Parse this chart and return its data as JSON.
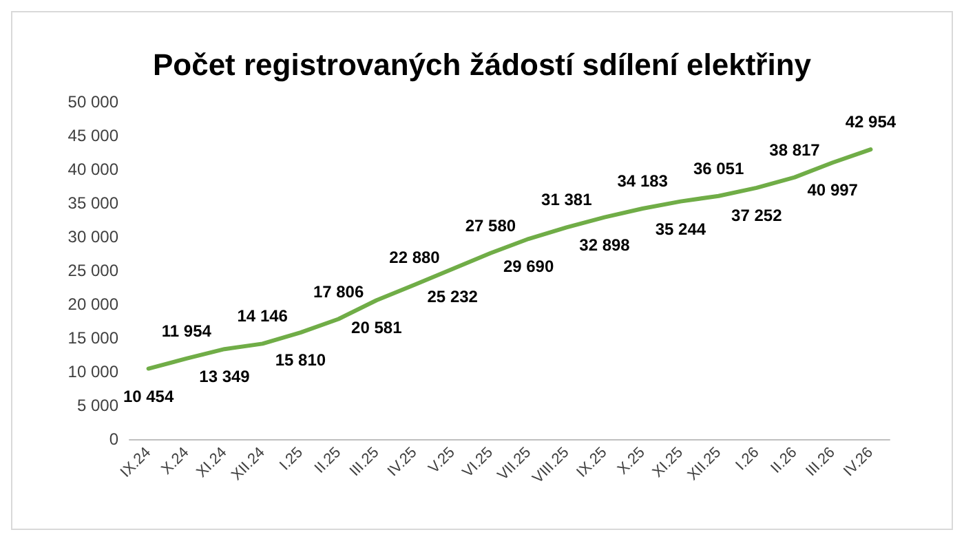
{
  "chart_data": {
    "type": "line",
    "title": "Počet registrovaných žádostí sdílení elektřiny",
    "categories": [
      "IX.24",
      "X.24",
      "XI.24",
      "XII.24",
      "I.25",
      "II.25",
      "III.25",
      "IV.25",
      "V.25",
      "VI.25",
      "VII.25",
      "VIII.25",
      "IX.25",
      "X.25",
      "XI.25",
      "XII.25",
      "I.26",
      "II.26",
      "III.26",
      "IV.26"
    ],
    "series": [
      {
        "color": "#70ad47",
        "values": [
          10454,
          11954,
          13349,
          14146,
          15810,
          17806,
          20581,
          22880,
          25232,
          27580,
          29690,
          31381,
          32898,
          34183,
          35244,
          36051,
          37252,
          38817,
          40997,
          42954
        ],
        "value_labels": [
          "10 454",
          "11 954",
          "13 349",
          "14 146",
          "15 810",
          "17 806",
          "20 581",
          "22 880",
          "25 232",
          "27 580",
          "29 690",
          "31 381",
          "32 898",
          "34 183",
          "35 244",
          "36 051",
          "37 252",
          "38 817",
          "40 997",
          "42 954"
        ]
      }
    ],
    "ylim": [
      0,
      50000
    ],
    "yticks": [
      {
        "value": 0,
        "label": "0"
      },
      {
        "value": 5000,
        "label": "5 000"
      },
      {
        "value": 10000,
        "label": "10 000"
      },
      {
        "value": 15000,
        "label": "15 000"
      },
      {
        "value": 20000,
        "label": "20 000"
      },
      {
        "value": 25000,
        "label": "25 000"
      },
      {
        "value": 30000,
        "label": "30 000"
      },
      {
        "value": 35000,
        "label": "35 000"
      },
      {
        "value": 40000,
        "label": "40 000"
      },
      {
        "value": 45000,
        "label": "45 000"
      },
      {
        "value": 50000,
        "label": "50 000"
      }
    ],
    "grid": false,
    "marker": "none",
    "line_style": "solid"
  }
}
